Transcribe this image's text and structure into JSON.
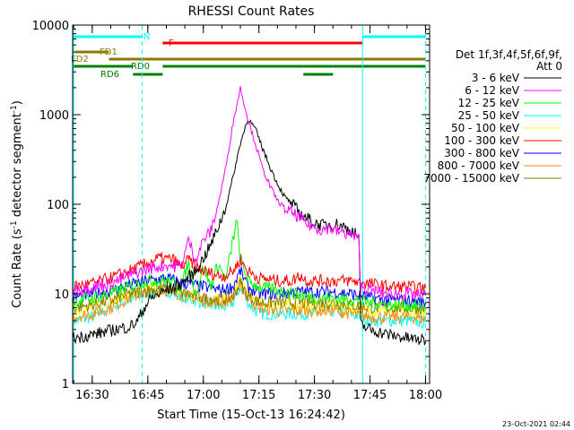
{
  "chart_data": {
    "type": "line",
    "title": "RHESSI Count Rates",
    "xlabel": "Start Time (15-Oct-13 16:24:42)",
    "ylabel_main": "Count Rate (s",
    "ylabel_sup1": "-1",
    "ylabel_mid": " detector segment",
    "ylabel_sup2": "-1",
    "ylabel_end": ")",
    "yscale": "log",
    "ylim": [
      1,
      10000
    ],
    "xlim_min": [
      984.7,
      1200
    ],
    "x_unit": "minutes since 00:00 on 15-Oct-13",
    "x_ticks": [
      {
        "value": 990,
        "label": "16:30"
      },
      {
        "value": 1005,
        "label": "16:45"
      },
      {
        "value": 1020,
        "label": "17:00"
      },
      {
        "value": 1035,
        "label": "17:15"
      },
      {
        "value": 1050,
        "label": "17:30"
      },
      {
        "value": 1065,
        "label": "17:45"
      },
      {
        "value": 1080,
        "label": "18:00"
      }
    ],
    "y_ticks": [
      {
        "value": 1,
        "label": "1"
      },
      {
        "value": 10,
        "label": "10"
      },
      {
        "value": 100,
        "label": "100"
      },
      {
        "value": 1000,
        "label": "1000"
      },
      {
        "value": 10000,
        "label": "10000"
      }
    ],
    "legend_header": [
      "Det 1f,3f,4f,5f,6f,9f,",
      "Att 0"
    ],
    "legend_placement": "right",
    "series": [
      {
        "name": "3 - 6 keV",
        "color": "#000000",
        "points": [
          [
            984.7,
            3.2
          ],
          [
            990,
            3.5
          ],
          [
            995,
            3.9
          ],
          [
            1000,
            4.3
          ],
          [
            1002,
            4.8
          ],
          [
            1004,
            7
          ],
          [
            1006,
            9
          ],
          [
            1010,
            11
          ],
          [
            1014,
            13
          ],
          [
            1018,
            18
          ],
          [
            1022,
            35
          ],
          [
            1026,
            90
          ],
          [
            1028,
            200
          ],
          [
            1030,
            480
          ],
          [
            1032,
            900
          ],
          [
            1034,
            700
          ],
          [
            1036,
            420
          ],
          [
            1038,
            260
          ],
          [
            1040,
            170
          ],
          [
            1042,
            120
          ],
          [
            1044,
            100
          ],
          [
            1046,
            80
          ],
          [
            1048,
            70
          ],
          [
            1050,
            62
          ],
          [
            1052,
            58
          ],
          [
            1054,
            60
          ],
          [
            1056,
            60
          ],
          [
            1058,
            56
          ],
          [
            1060,
            50
          ],
          [
            1062,
            44
          ],
          [
            1062.5,
            4.5
          ],
          [
            1065,
            4
          ],
          [
            1070,
            3.5
          ],
          [
            1075,
            3.2
          ],
          [
            1080,
            3
          ]
        ]
      },
      {
        "name": "6 - 12 keV",
        "color": "#ff00ff",
        "points": [
          [
            984.7,
            11
          ],
          [
            990,
            12
          ],
          [
            995,
            13
          ],
          [
            1000,
            16
          ],
          [
            1005,
            19
          ],
          [
            1010,
            21
          ],
          [
            1014,
            20
          ],
          [
            1016,
            40
          ],
          [
            1018,
            24
          ],
          [
            1020,
            40
          ],
          [
            1022,
            50
          ],
          [
            1024,
            100
          ],
          [
            1026,
            250
          ],
          [
            1028,
            800
          ],
          [
            1030,
            2000
          ],
          [
            1032,
            900
          ],
          [
            1034,
            480
          ],
          [
            1036,
            250
          ],
          [
            1038,
            160
          ],
          [
            1040,
            110
          ],
          [
            1042,
            90
          ],
          [
            1044,
            80
          ],
          [
            1046,
            70
          ],
          [
            1048,
            60
          ],
          [
            1050,
            55
          ],
          [
            1052,
            52
          ],
          [
            1054,
            55
          ],
          [
            1056,
            50
          ],
          [
            1058,
            48
          ],
          [
            1060,
            45
          ],
          [
            1062,
            40
          ],
          [
            1062.5,
            12
          ],
          [
            1065,
            11
          ],
          [
            1070,
            10
          ],
          [
            1075,
            10
          ],
          [
            1080,
            9.5
          ]
        ]
      },
      {
        "name": "12 - 25 keV",
        "color": "#00ff00",
        "points": [
          [
            984.7,
            8
          ],
          [
            990,
            9
          ],
          [
            995,
            10
          ],
          [
            1000,
            12
          ],
          [
            1005,
            14
          ],
          [
            1010,
            14
          ],
          [
            1014,
            12
          ],
          [
            1016,
            22
          ],
          [
            1018,
            10
          ],
          [
            1020,
            20
          ],
          [
            1022,
            12
          ],
          [
            1024,
            22
          ],
          [
            1026,
            14
          ],
          [
            1028,
            40
          ],
          [
            1029,
            65
          ],
          [
            1030,
            25
          ],
          [
            1032,
            14
          ],
          [
            1035,
            12
          ],
          [
            1040,
            11
          ],
          [
            1045,
            10
          ],
          [
            1050,
            9
          ],
          [
            1055,
            9
          ],
          [
            1060,
            8.5
          ],
          [
            1065,
            8
          ],
          [
            1070,
            7.5
          ],
          [
            1075,
            7.5
          ],
          [
            1080,
            7
          ]
        ]
      },
      {
        "name": "25 - 50 keV",
        "color": "#00ffff",
        "points": [
          [
            984.7,
            5
          ],
          [
            990,
            5.5
          ],
          [
            995,
            7
          ],
          [
            1000,
            8.5
          ],
          [
            1005,
            10
          ],
          [
            1010,
            11
          ],
          [
            1015,
            9
          ],
          [
            1020,
            8
          ],
          [
            1025,
            7
          ],
          [
            1028,
            8
          ],
          [
            1030,
            12
          ],
          [
            1032,
            8
          ],
          [
            1035,
            6
          ],
          [
            1040,
            6
          ],
          [
            1045,
            6
          ],
          [
            1050,
            6
          ],
          [
            1055,
            6.5
          ],
          [
            1060,
            6
          ],
          [
            1065,
            5
          ],
          [
            1070,
            5
          ],
          [
            1075,
            5
          ],
          [
            1080,
            4.8
          ]
        ]
      },
      {
        "name": "50 - 100 keV",
        "color": "#ffff00",
        "points": [
          [
            984.7,
            6.5
          ],
          [
            990,
            7
          ],
          [
            995,
            8.5
          ],
          [
            1000,
            10
          ],
          [
            1005,
            11.5
          ],
          [
            1010,
            12
          ],
          [
            1015,
            10
          ],
          [
            1020,
            9
          ],
          [
            1025,
            8.5
          ],
          [
            1028,
            10
          ],
          [
            1030,
            14
          ],
          [
            1032,
            10
          ],
          [
            1035,
            8
          ],
          [
            1040,
            7.5
          ],
          [
            1045,
            7.5
          ],
          [
            1050,
            7.5
          ],
          [
            1055,
            7.5
          ],
          [
            1060,
            7
          ],
          [
            1065,
            6.5
          ],
          [
            1070,
            6.5
          ],
          [
            1075,
            6.5
          ],
          [
            1080,
            6
          ]
        ]
      },
      {
        "name": "100 - 300 keV",
        "color": "#ff0000",
        "points": [
          [
            984.7,
            12
          ],
          [
            990,
            13
          ],
          [
            995,
            15
          ],
          [
            1000,
            18
          ],
          [
            1005,
            22
          ],
          [
            1008,
            25
          ],
          [
            1012,
            24
          ],
          [
            1014,
            20
          ],
          [
            1016,
            24
          ],
          [
            1018,
            20
          ],
          [
            1020,
            18
          ],
          [
            1024,
            16
          ],
          [
            1026,
            16
          ],
          [
            1028,
            18
          ],
          [
            1030,
            24
          ],
          [
            1032,
            18
          ],
          [
            1035,
            15
          ],
          [
            1040,
            14
          ],
          [
            1044,
            14
          ],
          [
            1046,
            16
          ],
          [
            1048,
            14
          ],
          [
            1050,
            14
          ],
          [
            1055,
            14
          ],
          [
            1060,
            14
          ],
          [
            1065,
            13
          ],
          [
            1070,
            12
          ],
          [
            1075,
            12
          ],
          [
            1080,
            11.5
          ]
        ]
      },
      {
        "name": "300 - 800 keV",
        "color": "#0000ff",
        "points": [
          [
            984.7,
            9
          ],
          [
            990,
            10
          ],
          [
            995,
            11
          ],
          [
            1000,
            12.5
          ],
          [
            1005,
            14
          ],
          [
            1010,
            15
          ],
          [
            1015,
            13
          ],
          [
            1020,
            12
          ],
          [
            1025,
            11
          ],
          [
            1028,
            12
          ],
          [
            1030,
            18
          ],
          [
            1032,
            12
          ],
          [
            1035,
            10
          ],
          [
            1040,
            10
          ],
          [
            1045,
            10.5
          ],
          [
            1050,
            10.5
          ],
          [
            1055,
            10.5
          ],
          [
            1060,
            10
          ],
          [
            1065,
            9
          ],
          [
            1070,
            8.5
          ],
          [
            1075,
            8.5
          ],
          [
            1080,
            8
          ]
        ]
      },
      {
        "name": "800 - 7000 keV",
        "color": "#ff8c00",
        "points": [
          [
            984.7,
            5.5
          ],
          [
            990,
            6
          ],
          [
            995,
            7
          ],
          [
            1000,
            9
          ],
          [
            1005,
            10.5
          ],
          [
            1010,
            11
          ],
          [
            1015,
            9.5
          ],
          [
            1020,
            8.5
          ],
          [
            1025,
            8
          ],
          [
            1028,
            9
          ],
          [
            1030,
            13
          ],
          [
            1032,
            9
          ],
          [
            1035,
            7
          ],
          [
            1040,
            6.5
          ],
          [
            1045,
            6.5
          ],
          [
            1050,
            6.5
          ],
          [
            1055,
            6.5
          ],
          [
            1060,
            6
          ],
          [
            1065,
            5.5
          ],
          [
            1070,
            5.5
          ],
          [
            1075,
            5.5
          ],
          [
            1080,
            5.2
          ]
        ]
      },
      {
        "name": "7000 - 15000 keV",
        "color": "#8b7a00",
        "points": [
          [
            984.7,
            7
          ],
          [
            990,
            7.5
          ],
          [
            995,
            8.5
          ],
          [
            1000,
            10
          ],
          [
            1005,
            11
          ],
          [
            1010,
            11.5
          ],
          [
            1015,
            10
          ],
          [
            1020,
            9
          ],
          [
            1025,
            8.5
          ],
          [
            1028,
            9.5
          ],
          [
            1030,
            13
          ],
          [
            1032,
            9.5
          ],
          [
            1035,
            8
          ],
          [
            1040,
            8
          ],
          [
            1045,
            8
          ],
          [
            1050,
            8
          ],
          [
            1055,
            8
          ],
          [
            1060,
            7.5
          ],
          [
            1065,
            7
          ],
          [
            1070,
            7
          ],
          [
            1075,
            7
          ],
          [
            1080,
            6.8
          ]
        ]
      }
    ],
    "flags": [
      {
        "label": "N",
        "color": "#00ffff",
        "segments": [
          [
            984.7,
            1003.5
          ],
          [
            1063,
            1080
          ]
        ]
      },
      {
        "label": "F",
        "color": "#ff0000",
        "segments": [
          [
            1009,
            1063
          ]
        ]
      },
      {
        "label": "FD1",
        "color": "#8b7a00",
        "segments": [
          [
            985.5,
            994.5
          ]
        ]
      },
      {
        "label": "FD2",
        "color": "#8b7a00",
        "segments": [
          [
            994.5,
            1063
          ],
          [
            1063,
            1080
          ]
        ]
      },
      {
        "label": "RD0",
        "color": "#008000",
        "segments": [
          [
            984.7,
            1001
          ],
          [
            1009,
            1047
          ],
          [
            1047,
            1055
          ],
          [
            1055,
            1080
          ]
        ]
      },
      {
        "label": "RD6",
        "color": "#008000",
        "segments": [
          [
            1001,
            1009
          ],
          [
            1047,
            1055
          ]
        ]
      }
    ],
    "vertical_markers": [
      {
        "x": 984.7,
        "color": "#00ffff",
        "style": "solid"
      },
      {
        "x": 1003.5,
        "color": "#00ffff",
        "style": "dashed"
      },
      {
        "x": 1063,
        "color": "#00ffff",
        "style": "solid"
      },
      {
        "x": 1080,
        "color": "#00ffff",
        "style": "dashed"
      }
    ],
    "footer_date": "23-Oct-2021 02:44"
  }
}
